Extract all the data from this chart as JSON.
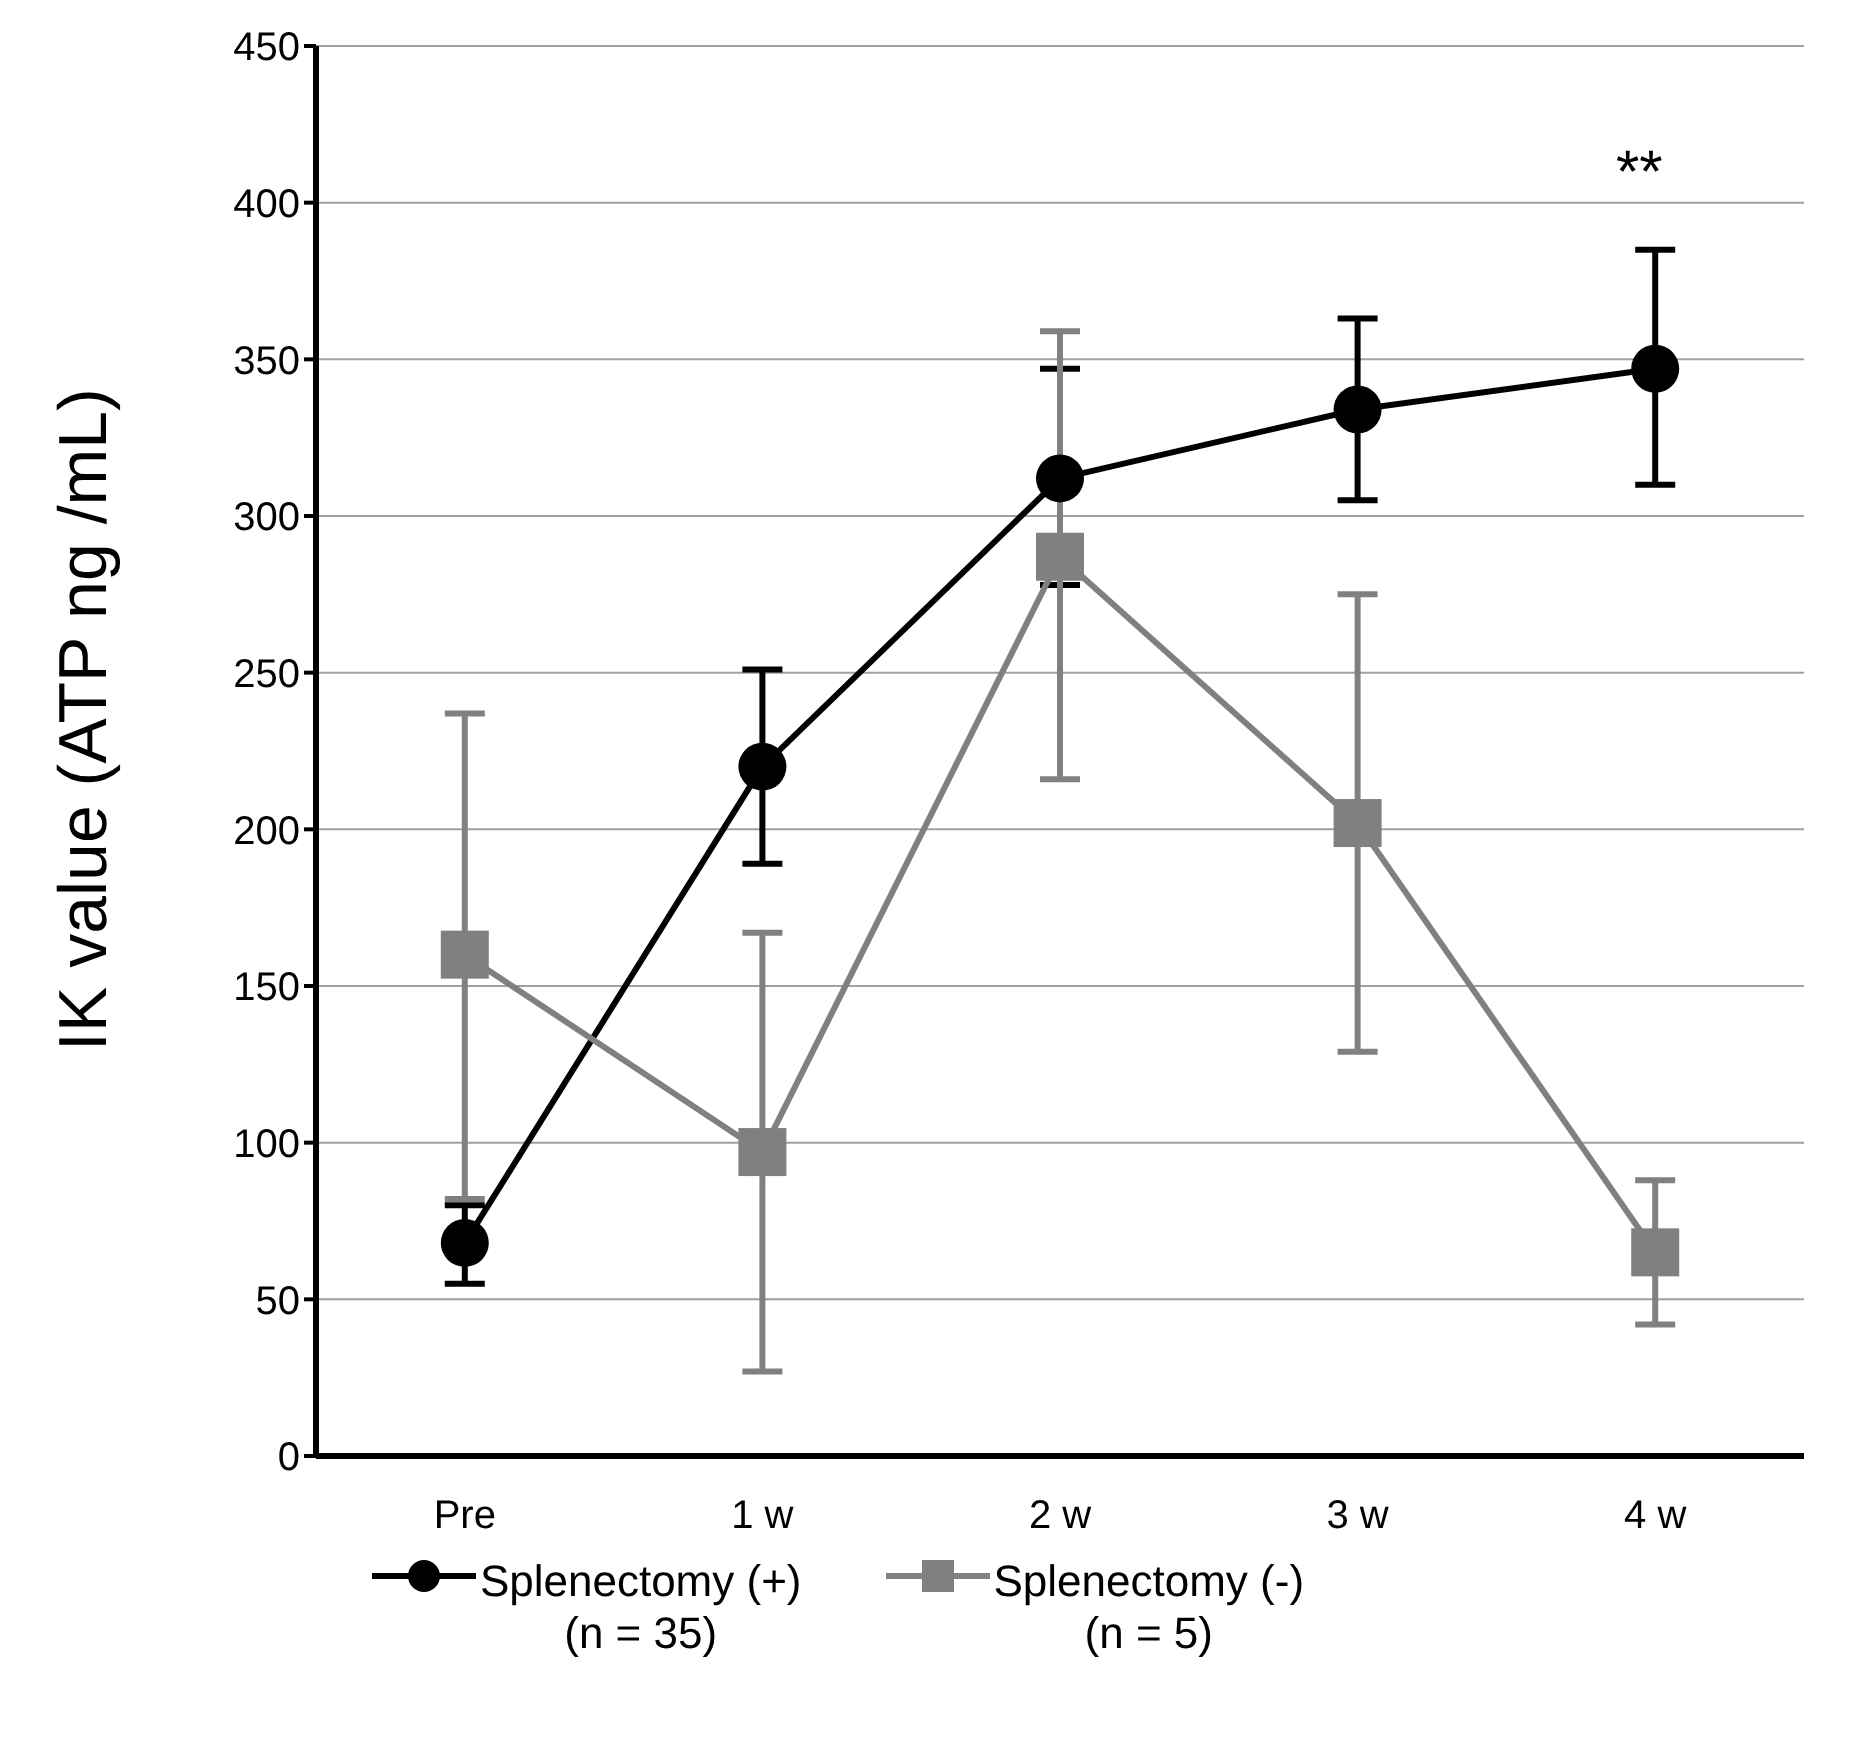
{
  "chart_data": {
    "type": "line",
    "ylabel": "IK value (ATP ng /mL)",
    "categories": [
      "Pre",
      "1 w",
      "2 w",
      "3 w",
      "4 w"
    ],
    "series": [
      {
        "name": "Splenectomy (+)\n(n = 35)",
        "color": "#000000",
        "marker": "circle",
        "values": [
          68,
          220,
          312,
          334,
          347
        ],
        "errors": [
          [
            55,
            80
          ],
          [
            189,
            251
          ],
          [
            278,
            347
          ],
          [
            305,
            363
          ],
          [
            310,
            385
          ]
        ]
      },
      {
        "name": "Splenectomy (-)\n(n = 5)",
        "color": "#808080",
        "marker": "square",
        "values": [
          160,
          97,
          287,
          202,
          65
        ],
        "errors": [
          [
            82,
            237
          ],
          [
            27,
            167
          ],
          [
            216,
            359
          ],
          [
            129,
            275
          ],
          [
            42,
            88
          ]
        ]
      }
    ],
    "ylim": [
      0,
      450
    ],
    "yticks": [
      0,
      50,
      100,
      150,
      200,
      250,
      300,
      350,
      400,
      450
    ],
    "grid": "y",
    "legend": "bottom",
    "line_style": "solid",
    "annotations": [
      "**"
    ]
  }
}
